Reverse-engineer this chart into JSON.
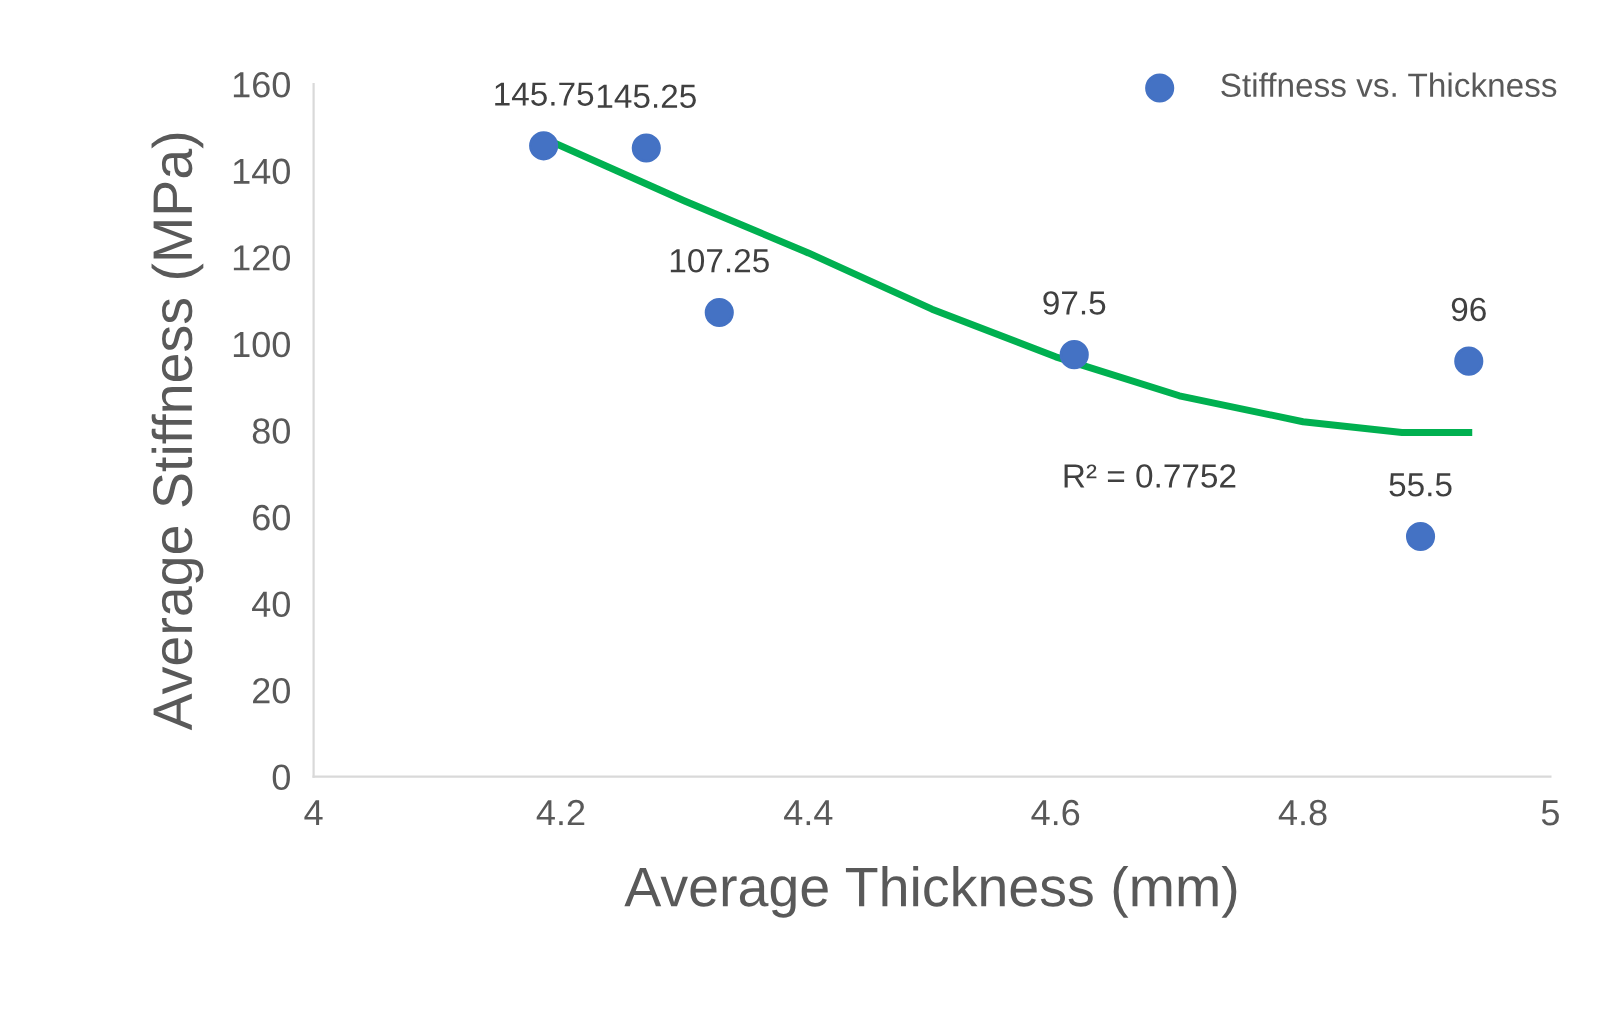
{
  "chart_data": {
    "type": "scatter",
    "xlabel": "Average Thickness (mm)",
    "ylabel": "Average Stiffness (MPa)",
    "xlim": [
      4,
      5
    ],
    "xticks": [
      4,
      4.2,
      4.4,
      4.6,
      4.8,
      5
    ],
    "ylim": [
      0,
      160
    ],
    "yticks": [
      0,
      20,
      40,
      60,
      80,
      100,
      120,
      140,
      160
    ],
    "grid": false,
    "legend": "top right",
    "series": [
      {
        "name": "Stiffness vs. Thickness",
        "color": "#4472c4",
        "marker": "circle",
        "x": [
          4.186,
          4.269,
          4.328,
          4.615,
          4.895,
          4.934
        ],
        "values": [
          145.75,
          145.25,
          107.25,
          97.5,
          55.5,
          96
        ],
        "value_labels": [
          "145.75",
          "145.25",
          "107.25",
          "97.5",
          "55.5",
          "96"
        ]
      },
      {
        "type": "line",
        "color": "#00b050",
        "line_style": "solid",
        "x": [
          4.186,
          4.3,
          4.4,
          4.5,
          4.6,
          4.7,
          4.8,
          4.88,
          4.934
        ],
        "values": [
          147.5,
          133,
          121,
          108,
          97,
          88,
          82,
          79.5,
          79.5
        ]
      }
    ],
    "annotations": [
      "R² = 0.7752"
    ]
  }
}
